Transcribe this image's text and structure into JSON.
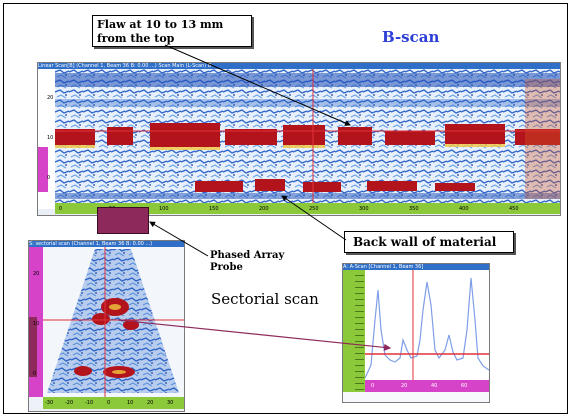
{
  "figure": {
    "title": "B-scan",
    "flaw_callout": "Flaw at 10 to 13 mm from the top",
    "backwall_callout": "Back wall of material",
    "probe_label": "Phased Array Probe",
    "sectorial_label": "Sectorial scan"
  },
  "bscan_window": {
    "titlebar": "Linear Scan[B] (Channel 1, Beam 36 B: 0.00 ...) Scan Main (L-Scan) B",
    "scale_marks": [
      "20",
      "10",
      "0"
    ],
    "x_ticks": [
      "0",
      "50mm",
      "100",
      "150",
      "200",
      "250",
      "300",
      "350",
      "400",
      "450"
    ]
  },
  "sector_window": {
    "titlebar": "S: sectorial scan (Channel 1, Beam 36 B: 0.00 ...)",
    "scale_marks": [
      "20",
      "10",
      "0"
    ],
    "x_ticks": [
      "-30",
      "-20",
      "-10",
      "0",
      "10",
      "20",
      "30"
    ]
  },
  "ascan_window": {
    "titlebar": "A: A-Scan [Channel 1, Beam 36]",
    "x_ticks": [
      "0",
      "20",
      "40",
      "60"
    ]
  },
  "colors": {
    "frame": "#000000",
    "title_blue": "#2b3fd6",
    "window_titlebar": "#2f6fc7",
    "magenta_axis": "#d642c8",
    "green_axis": "#8cc93a",
    "flaw_red": "#b3141c",
    "cursor_red": "#e0323a",
    "ascan_trace": "#7f9de8",
    "probe": "#8e2a5b"
  }
}
